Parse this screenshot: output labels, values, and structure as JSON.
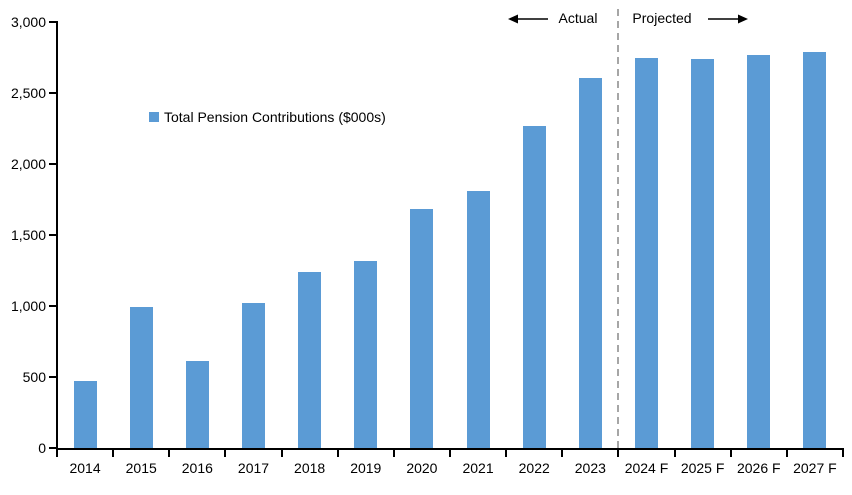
{
  "chart": {
    "legend_label": "Total Pension Contributions ($000s)",
    "annotations": {
      "actual_label": "Actual",
      "projected_label": "Projected"
    },
    "colors": {
      "bar": "#5B9BD5",
      "axis": "#000000",
      "divider": "#A6A6A6",
      "text": "#000000",
      "background": "#FFFFFF"
    }
  },
  "chart_data": {
    "type": "bar",
    "title": "",
    "xlabel": "",
    "ylabel": "",
    "categories": [
      "2014",
      "2015",
      "2016",
      "2017",
      "2018",
      "2019",
      "2020",
      "2021",
      "2022",
      "2023",
      "2024 F",
      "2025 F",
      "2026 F",
      "2027 F"
    ],
    "values": [
      470,
      990,
      610,
      1020,
      1240,
      1320,
      1680,
      1810,
      2270,
      2605,
      2750,
      2740,
      2765,
      2790
    ],
    "series_name": "Total Pension Contributions ($000s)",
    "ylim": [
      0,
      3000
    ],
    "ytick_interval": 500,
    "ytick_labels": [
      "0",
      "500",
      "1,000",
      "1,500",
      "2,000",
      "2,500",
      "3,000"
    ],
    "grid": false,
    "legend_position": "inside-upper-left",
    "divider_after_index": 9,
    "actual_categories": [
      "2014",
      "2023"
    ],
    "projected_categories": [
      "2024 F",
      "2027 F"
    ],
    "bar_color": "#5B9BD5"
  }
}
